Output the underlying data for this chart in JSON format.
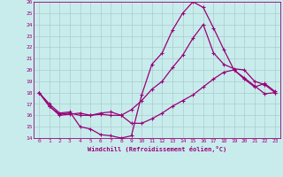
{
  "xlabel": "Windchill (Refroidissement éolien,°C)",
  "bg_color": "#c8ecec",
  "line_color": "#990077",
  "grid_color": "#aacccc",
  "ylim": [
    14,
    26
  ],
  "xlim": [
    -0.5,
    23.5
  ],
  "yticks": [
    14,
    15,
    16,
    17,
    18,
    19,
    20,
    21,
    22,
    23,
    24,
    25,
    26
  ],
  "xticks": [
    0,
    1,
    2,
    3,
    4,
    5,
    6,
    7,
    8,
    9,
    10,
    11,
    12,
    13,
    14,
    15,
    16,
    17,
    18,
    19,
    20,
    21,
    22,
    23
  ],
  "series": [
    {
      "x": [
        0,
        1,
        2,
        3,
        4,
        5,
        6,
        7,
        8,
        9,
        10,
        11,
        12,
        13,
        14,
        15,
        16,
        17,
        18,
        19,
        20,
        21,
        22,
        23
      ],
      "y": [
        18.0,
        17.0,
        16.2,
        16.3,
        15.0,
        14.8,
        14.3,
        14.2,
        14.0,
        14.2,
        17.8,
        20.5,
        21.5,
        23.5,
        25.0,
        26.0,
        25.5,
        23.7,
        21.8,
        20.0,
        19.2,
        18.5,
        18.8,
        18.1
      ]
    },
    {
      "x": [
        0,
        1,
        2,
        3,
        4,
        5,
        6,
        7,
        8,
        9,
        10,
        11,
        12,
        13,
        14,
        15,
        16,
        17,
        18,
        19,
        20,
        21,
        22,
        23
      ],
      "y": [
        18.0,
        16.8,
        16.1,
        16.2,
        16.0,
        16.0,
        16.2,
        16.3,
        16.0,
        16.5,
        17.3,
        18.3,
        19.0,
        20.2,
        21.3,
        22.8,
        24.0,
        21.5,
        20.5,
        20.1,
        20.0,
        19.0,
        18.7,
        18.0
      ]
    },
    {
      "x": [
        0,
        1,
        2,
        3,
        4,
        5,
        6,
        7,
        8,
        9,
        10,
        11,
        12,
        13,
        14,
        15,
        16,
        17,
        18,
        19,
        20,
        21,
        22,
        23
      ],
      "y": [
        18.0,
        16.8,
        16.0,
        16.1,
        16.2,
        16.0,
        16.1,
        16.0,
        16.0,
        15.3,
        15.3,
        15.7,
        16.2,
        16.8,
        17.3,
        17.8,
        18.5,
        19.2,
        19.8,
        20.0,
        19.3,
        18.6,
        17.9,
        18.0
      ]
    }
  ]
}
